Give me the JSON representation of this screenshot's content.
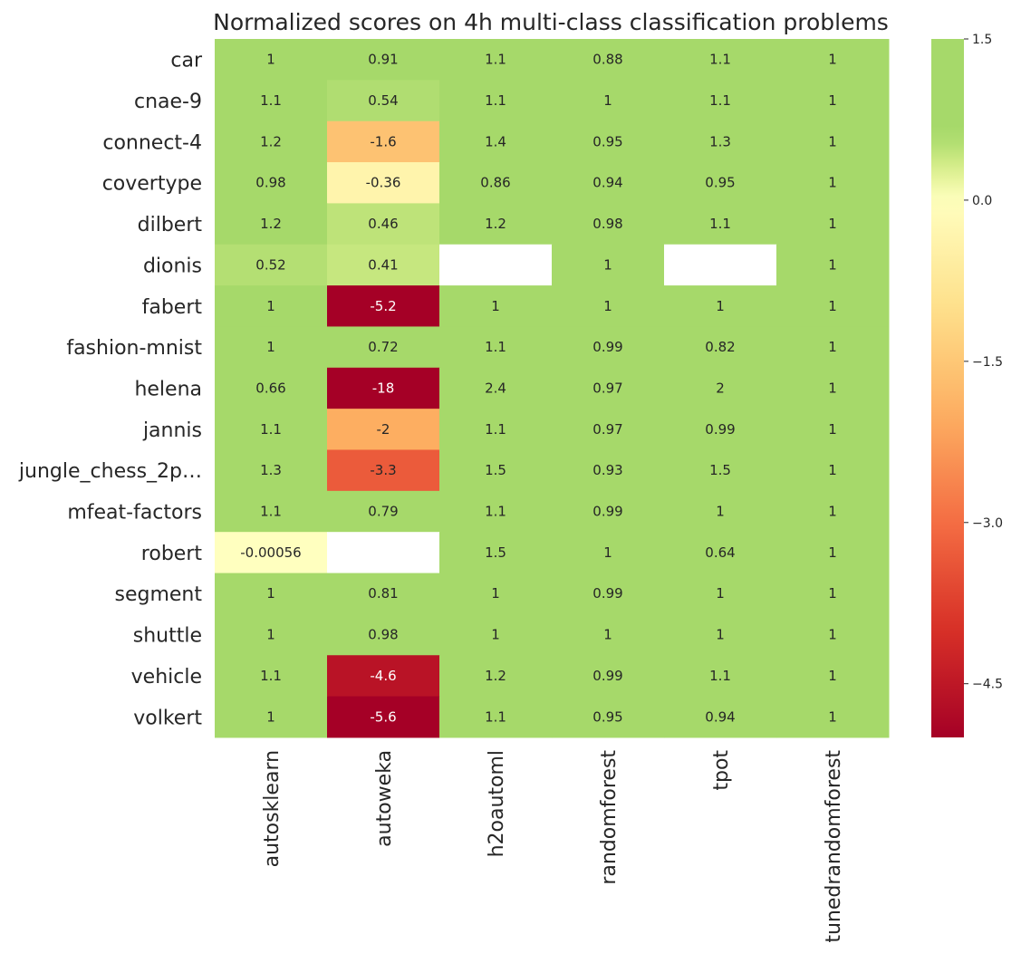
{
  "chart_data": {
    "type": "heatmap",
    "title": "Normalized scores on 4h multi-class classification problems",
    "rows": [
      "car",
      "cnae-9",
      "connect-4",
      "covertype",
      "dilbert",
      "dionis",
      "fabert",
      "fashion-mnist",
      "helena",
      "jannis",
      "jungle_chess_2p…",
      "mfeat-factors",
      "robert",
      "segment",
      "shuttle",
      "vehicle",
      "volkert"
    ],
    "columns": [
      "autosklearn",
      "autoweka",
      "h2oautoml",
      "randomforest",
      "tpot",
      "tunedrandomforest"
    ],
    "values": [
      [
        1,
        0.91,
        1.1,
        0.88,
        1.1,
        1
      ],
      [
        1.1,
        0.54,
        1.1,
        1,
        1.1,
        1
      ],
      [
        1.2,
        -1.6,
        1.4,
        0.95,
        1.3,
        1
      ],
      [
        0.98,
        -0.36,
        0.86,
        0.94,
        0.95,
        1
      ],
      [
        1.2,
        0.46,
        1.2,
        0.98,
        1.1,
        1
      ],
      [
        0.52,
        0.41,
        null,
        1,
        null,
        1
      ],
      [
        1,
        -5.2,
        1,
        1,
        1,
        1
      ],
      [
        1,
        0.72,
        1.1,
        0.99,
        0.82,
        1
      ],
      [
        0.66,
        -18,
        2.4,
        0.97,
        2,
        1
      ],
      [
        1.1,
        -2,
        1.1,
        0.97,
        0.99,
        1
      ],
      [
        1.3,
        -3.3,
        1.5,
        0.93,
        1.5,
        1
      ],
      [
        1.1,
        0.79,
        1.1,
        0.99,
        1,
        1
      ],
      [
        -0.00056,
        null,
        1.5,
        1,
        0.64,
        1
      ],
      [
        1,
        0.81,
        1,
        0.99,
        1,
        1
      ],
      [
        1,
        0.98,
        1,
        1,
        1,
        1
      ],
      [
        1.1,
        -4.6,
        1.2,
        0.99,
        1.1,
        1
      ],
      [
        1,
        -5.6,
        1.1,
        0.95,
        0.94,
        1
      ]
    ],
    "labels": [
      [
        "1",
        "0.91",
        "1.1",
        "0.88",
        "1.1",
        "1"
      ],
      [
        "1.1",
        "0.54",
        "1.1",
        "1",
        "1.1",
        "1"
      ],
      [
        "1.2",
        "-1.6",
        "1.4",
        "0.95",
        "1.3",
        "1"
      ],
      [
        "0.98",
        "-0.36",
        "0.86",
        "0.94",
        "0.95",
        "1"
      ],
      [
        "1.2",
        "0.46",
        "1.2",
        "0.98",
        "1.1",
        "1"
      ],
      [
        "0.52",
        "0.41",
        "",
        "1",
        "",
        "1"
      ],
      [
        "1",
        "-5.2",
        "1",
        "1",
        "1",
        "1"
      ],
      [
        "1",
        "0.72",
        "1.1",
        "0.99",
        "0.82",
        "1"
      ],
      [
        "0.66",
        "-18",
        "2.4",
        "0.97",
        "2",
        "1"
      ],
      [
        "1.1",
        "-2",
        "1.1",
        "0.97",
        "0.99",
        "1"
      ],
      [
        "1.3",
        "-3.3",
        "1.5",
        "0.93",
        "1.5",
        "1"
      ],
      [
        "1.1",
        "0.79",
        "1.1",
        "0.99",
        "1",
        "1"
      ],
      [
        "-0.00056",
        "",
        "1.5",
        "1",
        "0.64",
        "1"
      ],
      [
        "1",
        "0.81",
        "1",
        "0.99",
        "1",
        "1"
      ],
      [
        "1",
        "0.98",
        "1",
        "1",
        "1",
        "1"
      ],
      [
        "1.1",
        "-4.6",
        "1.2",
        "0.99",
        "1.1",
        "1"
      ],
      [
        "1",
        "-5.6",
        "1.1",
        "0.95",
        "0.94",
        "1"
      ]
    ],
    "colormap": "RdYlGn",
    "vmin": -5.0,
    "vmax": 1.5,
    "colorbar": {
      "ticks": [
        1.5,
        0.0,
        -1.5,
        -3.0,
        -4.5
      ],
      "tick_labels": [
        "1.5",
        "0.0",
        "−1.5",
        "−3.0",
        "−4.5"
      ]
    },
    "missing_color": "#ffffff",
    "grid": false
  }
}
